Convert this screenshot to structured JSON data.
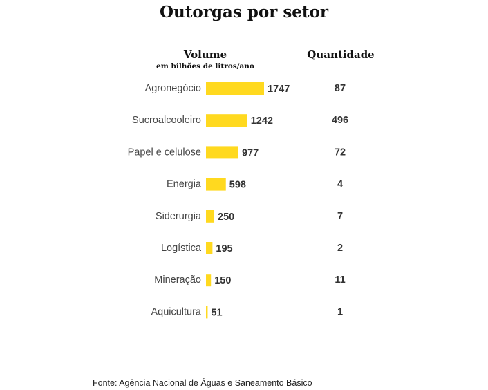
{
  "chart_data": {
    "type": "bar",
    "title": "Outorgas por setor",
    "value_header": "Volume",
    "value_subheader": "em bilhões de litros/ano",
    "quantity_header": "Quantidade",
    "categories": [
      "Agronegócio",
      "Sucroalcooleiro",
      "Papel e celulose",
      "Energia",
      "Siderurgia",
      "Logística",
      "Mineração",
      "Aquicultura"
    ],
    "series": [
      {
        "values": [
          1747,
          1242,
          977,
          598,
          250,
          195,
          150,
          51
        ]
      }
    ],
    "quantities": [
      87,
      496,
      72,
      4,
      7,
      2,
      11,
      1
    ],
    "bar_color": "#ffd91f",
    "orientation": "horizontal",
    "grid": false
  },
  "source": "Fonte: Agência Nacional de Águas e Saneamento Básico"
}
